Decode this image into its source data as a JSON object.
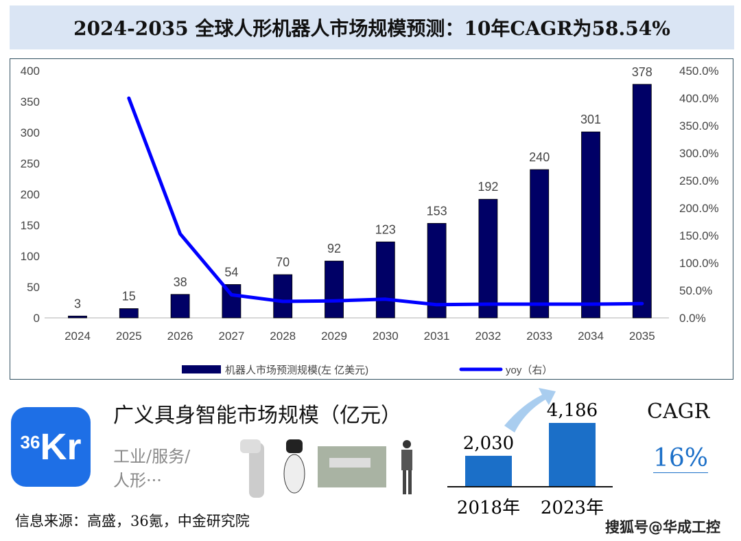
{
  "title": "2024-2035 全球人形机器人市场规模预测：10年CAGR为58.54%",
  "chart_data": {
    "type": "bar+line",
    "categories": [
      "2024",
      "2025",
      "2026",
      "2027",
      "2028",
      "2029",
      "2030",
      "2031",
      "2032",
      "2033",
      "2034",
      "2035"
    ],
    "series": [
      {
        "name": "机器人市场预测规模(左 亿美元)",
        "type": "bar",
        "axis": "left",
        "values": [
          3,
          15,
          38,
          54,
          70,
          92,
          123,
          153,
          192,
          240,
          301,
          378
        ],
        "color": "#000066"
      },
      {
        "name": "yoy（右）",
        "type": "line",
        "axis": "right",
        "values": [
          null,
          400,
          153,
          42,
          30,
          31,
          34,
          24,
          25,
          25,
          25,
          26
        ],
        "color": "#0000ff"
      }
    ],
    "left_axis": {
      "ylim": [
        0,
        400
      ],
      "ticks": [
        "0",
        "50",
        "100",
        "150",
        "200",
        "250",
        "300",
        "350",
        "400"
      ]
    },
    "right_axis": {
      "ylim": [
        0,
        450
      ],
      "ticks": [
        "0.0%",
        "50.0%",
        "100.0%",
        "150.0%",
        "200.0%",
        "250.0%",
        "300.0%",
        "350.0%",
        "400.0%",
        "450.0%"
      ]
    },
    "legend": "bottom",
    "grid": false
  },
  "infographic": {
    "logo_text": "36Kr",
    "heading": "广义具身智能市场规模（亿元）",
    "subtitle_line1": "工业/服务/",
    "subtitle_line2": "人形···",
    "bars": [
      {
        "label": "2018年",
        "value": "2,030",
        "num": 2030
      },
      {
        "label": "2023年",
        "value": "4,186",
        "num": 4186
      }
    ],
    "bar_color": "#1b6fc8",
    "cagr_label": "CAGR",
    "cagr_value": "16%",
    "source": "信息来源：高盛，36氪，中金研究院",
    "watermark": "搜狐号@华成工控"
  }
}
